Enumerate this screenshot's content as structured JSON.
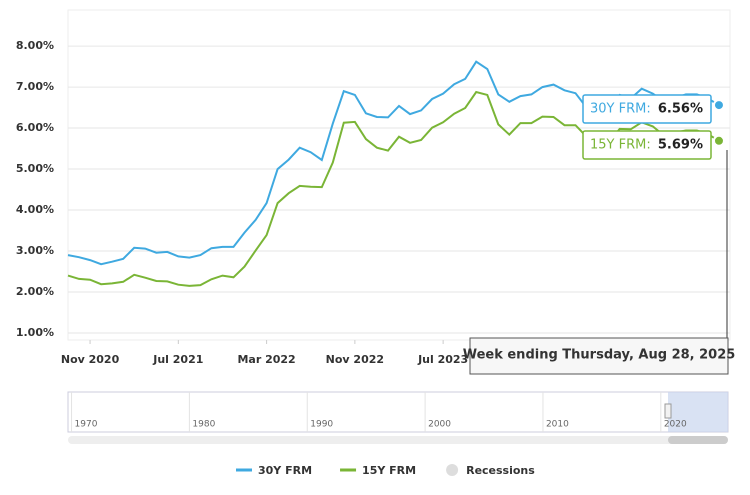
{
  "chart_data": {
    "type": "line",
    "x": [
      "2020-09",
      "2020-10",
      "2020-11",
      "2020-12",
      "2021-01",
      "2021-02",
      "2021-03",
      "2021-04",
      "2021-05",
      "2021-06",
      "2021-07",
      "2021-08",
      "2021-09",
      "2021-10",
      "2021-11",
      "2021-12",
      "2022-01",
      "2022-02",
      "2022-03",
      "2022-04",
      "2022-05",
      "2022-06",
      "2022-07",
      "2022-08",
      "2022-09",
      "2022-10",
      "2022-11",
      "2022-12",
      "2023-01",
      "2023-02",
      "2023-03",
      "2023-04",
      "2023-05",
      "2023-06",
      "2023-07",
      "2023-08",
      "2023-09",
      "2023-10",
      "2023-11",
      "2023-12",
      "2024-01",
      "2024-02",
      "2024-03",
      "2024-04",
      "2024-05",
      "2024-06",
      "2024-07",
      "2024-08",
      "2024-09",
      "2024-10",
      "2024-11",
      "2024-12",
      "2025-01",
      "2025-02",
      "2025-03",
      "2025-04",
      "2025-05",
      "2025-06",
      "2025-07",
      "2025-08"
    ],
    "series": [
      {
        "name": "30Y FRM",
        "color": "#3fa9e0",
        "values": [
          2.9,
          2.85,
          2.78,
          2.68,
          2.74,
          2.81,
          3.08,
          3.06,
          2.96,
          2.98,
          2.87,
          2.84,
          2.9,
          3.07,
          3.1,
          3.1,
          3.45,
          3.76,
          4.17,
          5.0,
          5.23,
          5.52,
          5.41,
          5.22,
          6.11,
          6.9,
          6.81,
          6.36,
          6.27,
          6.26,
          6.54,
          6.34,
          6.43,
          6.71,
          6.84,
          7.07,
          7.2,
          7.62,
          7.44,
          6.82,
          6.64,
          6.78,
          6.82,
          7.0,
          7.06,
          6.92,
          6.85,
          6.5,
          6.18,
          6.43,
          6.81,
          6.72,
          6.96,
          6.84,
          6.65,
          6.73,
          6.82,
          6.82,
          6.72,
          6.56
        ]
      },
      {
        "name": "15Y FRM",
        "color": "#7ab536",
        "values": [
          2.4,
          2.32,
          2.3,
          2.19,
          2.21,
          2.25,
          2.42,
          2.35,
          2.27,
          2.26,
          2.18,
          2.15,
          2.17,
          2.31,
          2.4,
          2.36,
          2.62,
          3.01,
          3.39,
          4.17,
          4.41,
          4.59,
          4.57,
          4.56,
          5.16,
          6.13,
          6.15,
          5.73,
          5.52,
          5.45,
          5.79,
          5.64,
          5.71,
          6.01,
          6.14,
          6.35,
          6.49,
          6.88,
          6.81,
          6.09,
          5.84,
          6.12,
          6.12,
          6.28,
          6.27,
          6.07,
          6.07,
          5.79,
          5.31,
          5.64,
          5.98,
          5.97,
          6.14,
          6.04,
          5.82,
          5.89,
          5.94,
          5.94,
          5.85,
          5.69
        ]
      }
    ],
    "xlim": [
      "2020-09",
      "2025-09"
    ],
    "xticks": [
      {
        "value": "2020-11",
        "label": "Nov 2020"
      },
      {
        "value": "2021-07",
        "label": "Jul 2021"
      },
      {
        "value": "2022-03",
        "label": "Mar 2022"
      },
      {
        "value": "2022-11",
        "label": "Nov 2022"
      },
      {
        "value": "2023-07",
        "label": "Jul 2023"
      }
    ],
    "ylim": [
      0.83,
      8.88
    ],
    "yticks": [
      {
        "value": 1,
        "label": "1.00%"
      },
      {
        "value": 2,
        "label": "2.00%"
      },
      {
        "value": 3,
        "label": "3.00%"
      },
      {
        "value": 4,
        "label": "4.00%"
      },
      {
        "value": 5,
        "label": "5.00%"
      },
      {
        "value": 6,
        "label": "6.00%"
      },
      {
        "value": 7,
        "label": "7.00%"
      },
      {
        "value": 8,
        "label": "8.00%"
      }
    ],
    "grid": true,
    "tooltip": {
      "title": "Week ending Thursday, Aug 28, 2025",
      "items": [
        {
          "name": "30Y FRM:",
          "value": 6.56,
          "label": "6.56%"
        },
        {
          "name": "15Y FRM:",
          "value": 5.69,
          "label": "5.69%"
        }
      ]
    },
    "navigator": {
      "xlim": [
        1969.7,
        2025.7
      ],
      "xticks": [
        1970,
        1980,
        1990,
        2000,
        2010,
        2020
      ]
    },
    "recessions": {
      "name": "Recessions",
      "color": "#dddddd"
    }
  }
}
